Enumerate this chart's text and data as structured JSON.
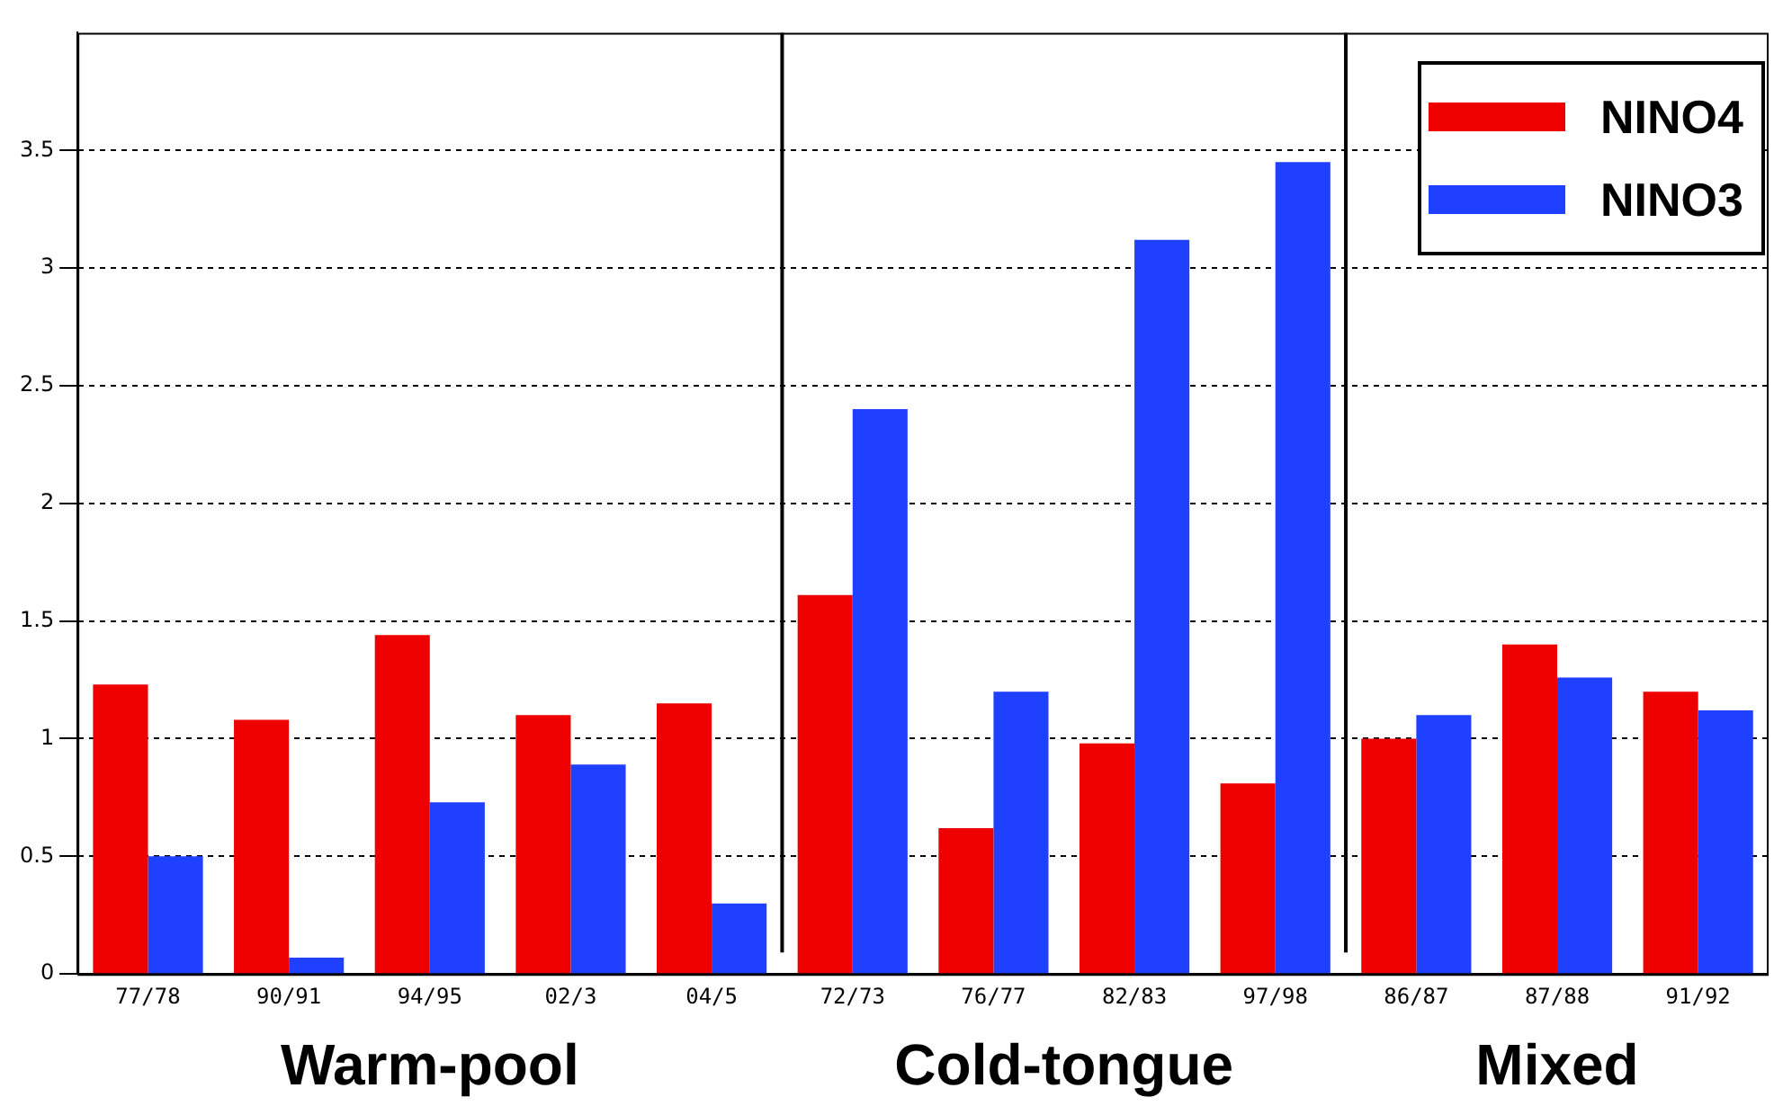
{
  "chart_data": {
    "type": "bar",
    "categories": [
      "77/78",
      "90/91",
      "94/95",
      "02/3",
      "04/5",
      "72/73",
      "76/77",
      "82/83",
      "97/98",
      "86/87",
      "87/88",
      "91/92"
    ],
    "series": [
      {
        "name": "NINO4",
        "color": "#ee0000",
        "values": [
          1.23,
          1.08,
          1.44,
          1.1,
          1.15,
          1.61,
          0.62,
          0.98,
          0.81,
          1.0,
          1.4,
          1.2
        ]
      },
      {
        "name": "NINO3",
        "color": "#2040ff",
        "values": [
          0.5,
          0.07,
          0.73,
          0.89,
          0.3,
          2.4,
          1.2,
          3.12,
          3.45,
          1.1,
          1.26,
          1.12
        ]
      }
    ],
    "ylim": [
      0,
      4
    ],
    "yticks": [
      0,
      0.5,
      1,
      1.5,
      2,
      2.5,
      3,
      3.5
    ],
    "grid": "y",
    "legend": "top right",
    "annotations": [
      "Warm-pool",
      "Cold-tongue",
      "Mixed"
    ]
  }
}
